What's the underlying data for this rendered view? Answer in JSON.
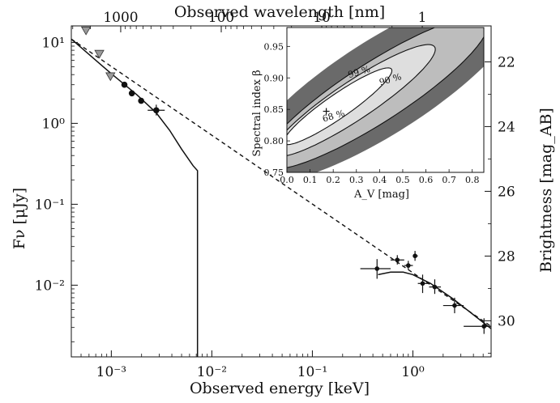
{
  "chart_data": {
    "type": "scatter",
    "xlabel": "Observed energy [keV]",
    "ylabel": "Fν [μJy]",
    "top_xlabel": "Observed wavelength [nm]",
    "right_ylabel": "Brightness [mag_AB]",
    "xscale": "log",
    "yscale": "log",
    "xlim": [
      0.0004,
      6.0
    ],
    "ylim": [
      0.0013,
      16
    ],
    "x_ticks": [
      {
        "value": 0.001,
        "label": "10⁻³"
      },
      {
        "value": 0.01,
        "label": "10⁻²"
      },
      {
        "value": 0.1,
        "label": "10⁻¹"
      },
      {
        "value": 1,
        "label": "10⁰"
      }
    ],
    "y_ticks": [
      {
        "value": 10,
        "label": "10¹"
      },
      {
        "value": 1,
        "label": "10⁰"
      },
      {
        "value": 0.1,
        "label": "10⁻¹"
      },
      {
        "value": 0.01,
        "label": "10⁻²"
      }
    ],
    "top_ticks": [
      {
        "label": "1000",
        "energy": 0.00124
      },
      {
        "label": "100",
        "energy": 0.0124
      },
      {
        "label": "10",
        "energy": 0.124
      },
      {
        "label": "1",
        "energy": 1.24
      }
    ],
    "right_ticks": [
      {
        "label": "22",
        "flux": 5.75
      },
      {
        "label": "24",
        "flux": 0.912
      },
      {
        "label": "26",
        "flux": 0.1445
      },
      {
        "label": "28",
        "flux": 0.0229
      },
      {
        "label": "30",
        "flux": 0.00363
      }
    ],
    "upper_limits": [
      {
        "x": 0.00056,
        "y": 14.0
      },
      {
        "x": 0.00076,
        "y": 7.2
      },
      {
        "x": 0.00098,
        "y": 3.8
      }
    ],
    "optical_points": [
      {
        "x": 0.00135,
        "y": 3.0
      },
      {
        "x": 0.0016,
        "y": 2.35
      },
      {
        "x": 0.00198,
        "y": 1.9
      },
      {
        "x": 0.0028,
        "y": 1.45,
        "xerr": [
          0.0023,
          0.0034
        ],
        "yerr": [
          1.25,
          1.7
        ]
      }
    ],
    "xray_points": [
      {
        "x": 0.44,
        "y": 0.016,
        "xerr": [
          0.3,
          0.6
        ],
        "yerr": [
          0.012,
          0.021
        ]
      },
      {
        "x": 0.7,
        "y": 0.0205,
        "xerr": [
          0.6,
          0.82
        ],
        "yerr": [
          0.018,
          0.0235
        ]
      },
      {
        "x": 0.9,
        "y": 0.0175,
        "xerr": [
          0.82,
          1.0
        ],
        "yerr": [
          0.0155,
          0.02
        ]
      },
      {
        "x": 1.05,
        "y": 0.023,
        "xerr": [
          1.0,
          1.12
        ],
        "yerr": [
          0.02,
          0.0265
        ]
      },
      {
        "x": 1.25,
        "y": 0.0105,
        "xerr": [
          1.12,
          1.45
        ],
        "yerr": [
          0.008,
          0.0135
        ]
      },
      {
        "x": 1.65,
        "y": 0.0095,
        "xerr": [
          1.45,
          1.9
        ],
        "yerr": [
          0.0078,
          0.0118
        ]
      },
      {
        "x": 2.6,
        "y": 0.0056,
        "xerr": [
          2.0,
          3.2
        ],
        "yerr": [
          0.0045,
          0.007
        ]
      },
      {
        "x": 5.1,
        "y": 0.0031,
        "xerr": [
          3.2,
          6.0
        ],
        "yerr": [
          0.0025,
          0.0039
        ]
      }
    ],
    "model_dashed": [
      [
        0.0004,
        11.0
      ],
      [
        6.0,
        0.0031
      ]
    ],
    "model_solid_optical": [
      [
        0.0004,
        11.0
      ],
      [
        0.001,
        4.1
      ],
      [
        0.0018,
        2.25
      ],
      [
        0.0028,
        1.35
      ],
      [
        0.0038,
        0.82
      ],
      [
        0.005,
        0.48
      ],
      [
        0.0065,
        0.3
      ],
      [
        0.0072,
        0.26
      ],
      [
        0.0072,
        0.0013
      ]
    ],
    "model_solid_xray": [
      [
        0.45,
        0.0135
      ],
      [
        0.6,
        0.0145
      ],
      [
        0.8,
        0.0145
      ],
      [
        1.0,
        0.0135
      ],
      [
        1.5,
        0.0105
      ],
      [
        2.5,
        0.0068
      ],
      [
        4.0,
        0.0043
      ],
      [
        6.0,
        0.0029
      ]
    ],
    "inset": {
      "xlabel": "A_V [mag]",
      "ylabel": "Spectral index β",
      "xlim": [
        0.0,
        0.85
      ],
      "ylim": [
        0.75,
        0.98
      ],
      "x_ticks": [
        "0.0",
        "0.1",
        "0.2",
        "0.3",
        "0.4",
        "0.5",
        "0.6",
        "0.7",
        "0.8"
      ],
      "y_ticks": [
        "0.75",
        "0.80",
        "0.85",
        "0.90",
        "0.95"
      ],
      "best_fit": {
        "x": 0.17,
        "y": 0.847
      },
      "contours": [
        {
          "label": "68 %",
          "center": [
            0.22,
            0.855
          ],
          "a": 0.24,
          "b": 0.022,
          "angle": 0.24
        },
        {
          "label": "90 %",
          "center": [
            0.29,
            0.864
          ],
          "a": 0.36,
          "b": 0.035,
          "angle": 0.23
        },
        {
          "label": "99 %",
          "center": [
            0.38,
            0.876
          ],
          "a": 0.5,
          "b": 0.054,
          "angle": 0.22
        }
      ],
      "outer_band": {
        "center": [
          0.41,
          0.886
        ],
        "a": 0.62,
        "b": 0.085,
        "angle": 0.21
      }
    }
  }
}
